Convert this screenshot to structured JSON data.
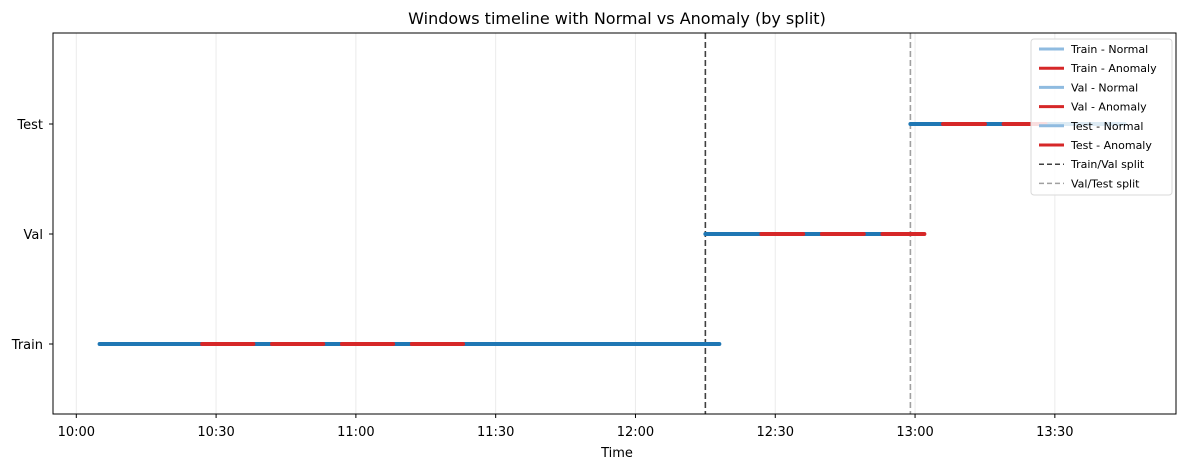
{
  "chart_data": {
    "type": "timeline",
    "title": "Windows timeline with Normal vs Anomaly (by split)",
    "xlabel": "Time",
    "ylabel": "",
    "xlim": [
      "09:55",
      "13:56"
    ],
    "x_ticks": [
      "10:00",
      "10:30",
      "11:00",
      "11:30",
      "12:00",
      "12:30",
      "13:00",
      "13:30"
    ],
    "y_categories": [
      "Train",
      "Val",
      "Test"
    ],
    "grid": "vertical",
    "legend_position": "top-right",
    "colors": {
      "normal_line": "#1f77b4",
      "normal_legend": "#8fbbe0",
      "anomaly": "#d62728",
      "train_val_split": "#404040",
      "val_test_split": "#a0a0a0"
    },
    "series": [
      {
        "split": "Train",
        "normal": [
          [
            "10:05",
            "10:27"
          ],
          [
            "10:38",
            "10:42"
          ],
          [
            "10:53",
            "10:57"
          ],
          [
            "11:08",
            "11:12"
          ],
          [
            "11:23",
            "12:18"
          ]
        ],
        "anomaly": [
          [
            "10:27",
            "10:38"
          ],
          [
            "10:42",
            "10:53"
          ],
          [
            "10:57",
            "11:08"
          ],
          [
            "11:12",
            "11:23"
          ]
        ]
      },
      {
        "split": "Val",
        "normal": [
          [
            "12:15",
            "12:27"
          ],
          [
            "12:36",
            "12:40"
          ],
          [
            "12:49",
            "12:53"
          ]
        ],
        "anomaly": [
          [
            "12:27",
            "12:36"
          ],
          [
            "12:40",
            "12:49"
          ],
          [
            "12:53",
            "13:02"
          ]
        ]
      },
      {
        "split": "Test",
        "normal": [
          [
            "12:59",
            "13:06"
          ],
          [
            "13:15",
            "13:19"
          ],
          [
            "13:28",
            "13:45"
          ]
        ],
        "anomaly": [
          [
            "13:06",
            "13:15"
          ],
          [
            "13:19",
            "13:28"
          ]
        ]
      }
    ],
    "splits": [
      {
        "name": "Train/Val split",
        "x": "12:15"
      },
      {
        "name": "Val/Test split",
        "x": "12:59"
      }
    ],
    "legend": [
      {
        "label": "Train - Normal",
        "kind": "normal"
      },
      {
        "label": "Train - Anomaly",
        "kind": "anomaly"
      },
      {
        "label": "Val - Normal",
        "kind": "normal"
      },
      {
        "label": "Val - Anomaly",
        "kind": "anomaly"
      },
      {
        "label": "Test - Normal",
        "kind": "normal"
      },
      {
        "label": "Test - Anomaly",
        "kind": "anomaly"
      },
      {
        "label": "Train/Val split",
        "kind": "split1"
      },
      {
        "label": "Val/Test split",
        "kind": "split2"
      }
    ]
  }
}
